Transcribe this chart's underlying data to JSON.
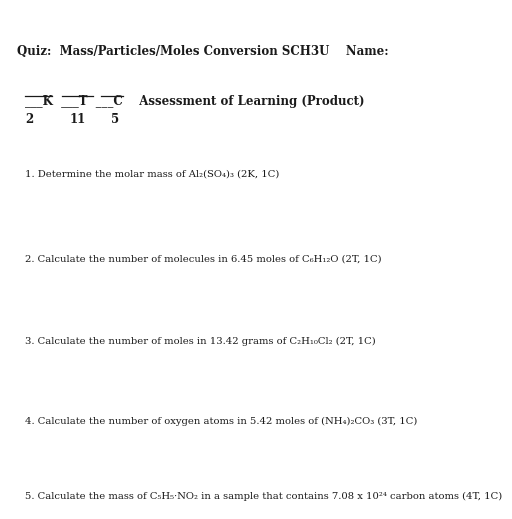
{
  "title": "Quiz:  Mass/Particles/Moles Conversion SCH3U    Name:",
  "kline": "___K  ___T  ___C    Assessment of Learning (Product)",
  "scores_2": "2",
  "scores_11": "11",
  "scores_5": "5",
  "q1": "1. Determine the molar mass of Al₂(SO₄)₃ (2K, 1C)",
  "q2": "2. Calculate the number of molecules in 6.45 moles of C₆H₁₂O (2T, 1C)",
  "q3": "3. Calculate the number of moles in 13.42 grams of C₂H₁₀Cl₂ (2T, 1C)",
  "q4": "4. Calculate the number of oxygen atoms in 5.42 moles of (NH₄)₂CO₃ (3T, 1C)",
  "q5": "5. Calculate the mass of C₅H₅·NO₂ in a sample that contains 7.08 x 10²⁴ carbon atoms (4T, 1C)",
  "background": "#ffffff",
  "text_color": "#1a1a1a",
  "title_fontsize": 8.5,
  "subtitle_fontsize": 8.5,
  "q_fontsize": 7.2,
  "line_color": "#1a1a1a"
}
